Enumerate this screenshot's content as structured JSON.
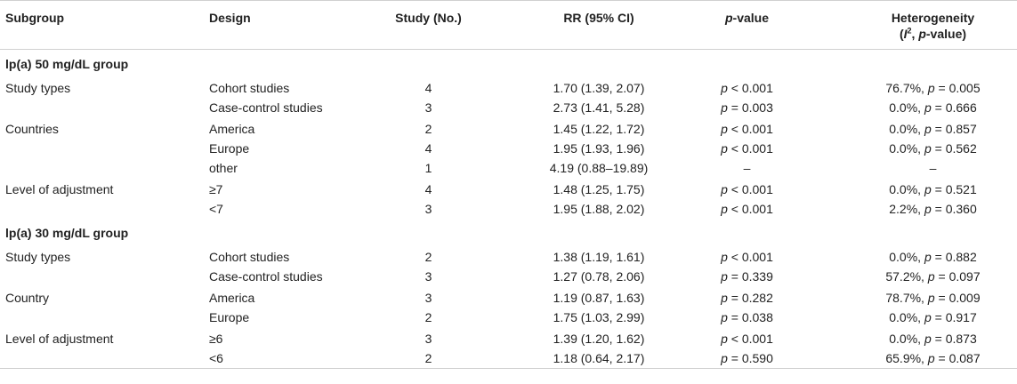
{
  "headers": {
    "subgroup": "Subgroup",
    "design": "Design",
    "study": "Study (No.)",
    "rr": "RR (95% CI)",
    "pvalue_p": "p",
    "pvalue_rest": "-value",
    "het_line1": "Heterogeneity",
    "het_open": "(",
    "het_i": "I",
    "het_sup": "2",
    "het_comma": ", ",
    "het_p": "p",
    "het_rest": "-value)"
  },
  "sections": [
    {
      "title": "lp(a) 50 mg/dL group",
      "groups": [
        {
          "label": "Study types",
          "rows": [
            {
              "design": "Cohort studies",
              "study": "4",
              "rr": "1.70 (1.39, 2.07)",
              "p": "p < 0.001",
              "het": "76.7%, p = 0.005"
            },
            {
              "design": "Case-control studies",
              "study": "3",
              "rr": "2.73 (1.41, 5.28)",
              "p": "p = 0.003",
              "het": "0.0%, p = 0.666"
            }
          ]
        },
        {
          "label": "Countries",
          "rows": [
            {
              "design": "America",
              "study": "2",
              "rr": "1.45 (1.22, 1.72)",
              "p": "p < 0.001",
              "het": "0.0%, p = 0.857"
            },
            {
              "design": "Europe",
              "study": "4",
              "rr": "1.95 (1.93, 1.96)",
              "p": "p < 0.001",
              "het": "0.0%, p = 0.562"
            },
            {
              "design": "other",
              "study": "1",
              "rr": "4.19 (0.88–19.89)",
              "p": "–",
              "het": "–"
            }
          ]
        },
        {
          "label": "Level of adjustment",
          "rows": [
            {
              "design": "≥7",
              "study": "4",
              "rr": "1.48 (1.25, 1.75)",
              "p": "p < 0.001",
              "het": "0.0%, p = 0.521"
            },
            {
              "design": "<7",
              "study": "3",
              "rr": "1.95 (1.88, 2.02)",
              "p": "p < 0.001",
              "het": "2.2%, p = 0.360"
            }
          ]
        }
      ]
    },
    {
      "title": "lp(a) 30 mg/dL group",
      "groups": [
        {
          "label": "Study types",
          "rows": [
            {
              "design": "Cohort studies",
              "study": "2",
              "rr": "1.38 (1.19, 1.61)",
              "p": "p < 0.001",
              "het": "0.0%, p = 0.882"
            },
            {
              "design": "Case-control studies",
              "study": "3",
              "rr": "1.27 (0.78, 2.06)",
              "p": "p = 0.339",
              "het": "57.2%, p = 0.097"
            }
          ]
        },
        {
          "label": "Country",
          "rows": [
            {
              "design": "America",
              "study": "3",
              "rr": "1.19 (0.87, 1.63)",
              "p": "p = 0.282",
              "het": "78.7%, p = 0.009"
            },
            {
              "design": "Europe",
              "study": "2",
              "rr": "1.75 (1.03, 2.99)",
              "p": "p = 0.038",
              "het": "0.0%, p = 0.917"
            }
          ]
        },
        {
          "label": "Level of adjustment",
          "rows": [
            {
              "design": "≥6",
              "study": "3",
              "rr": "1.39 (1.20, 1.62)",
              "p": "p < 0.001",
              "het": "0.0%, p = 0.873"
            },
            {
              "design": "<6",
              "study": "2",
              "rr": "1.18 (0.64, 2.17)",
              "p": "p = 0.590",
              "het": "65.9%, p = 0.087"
            }
          ]
        }
      ]
    }
  ]
}
